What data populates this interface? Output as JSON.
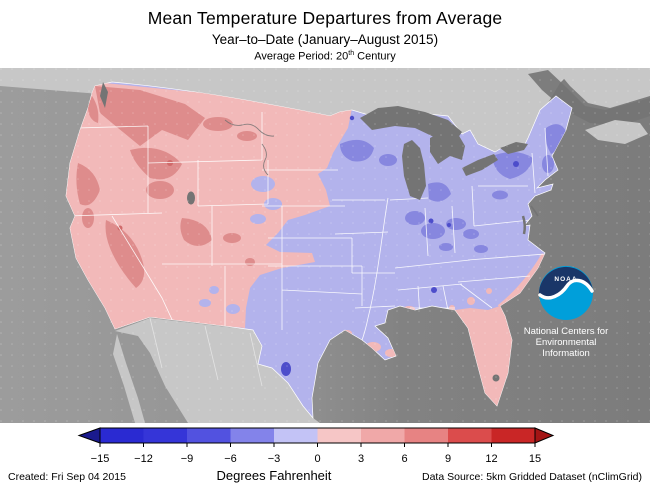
{
  "header": {
    "title": "Mean Temperature Departures from Average",
    "subtitle": "Year–to–Date (January–August 2015)",
    "period": {
      "prefix": "Average Period: 20",
      "sup": "th",
      "suffix": " Century"
    }
  },
  "noaa": {
    "acronym": "NOAA",
    "org_line1": "National Centers for",
    "org_line2": "Environmental",
    "org_line3": "Information"
  },
  "map": {
    "colors": {
      "ocean_left": "#9C9C9C",
      "ocean_right": "#7C7C7C",
      "foreign_land": "#C7C7C7",
      "lakes": "#747474",
      "us_lavender": "#B3B3EC",
      "purple_patch": "#8787DF",
      "deep_purple": "#4D4DCB",
      "us_pink": "#F2B9B9",
      "red_patch": "#DE8C8C",
      "deep_red": "#D06A6A",
      "state_line": "#FFFFFF",
      "noaa_navy": "#1A3668",
      "noaa_cyan": "#009FDA"
    }
  },
  "colorbar": {
    "tick_labels": [
      "−15",
      "−12",
      "−9",
      "−6",
      "−3",
      "0",
      "3",
      "6",
      "9",
      "12",
      "15"
    ],
    "segment_colors": [
      "#2A2AD2",
      "#3535D8",
      "#5252E0",
      "#8383EA",
      "#C3C3F6",
      "#F6C6C6",
      "#F0A8A8",
      "#E78383",
      "#DB4C4C",
      "#C92626"
    ],
    "left_arrow_color": "#1A1A8E",
    "right_arrow_color": "#A31515",
    "unit_label": "Degrees Fahrenheit"
  },
  "footer": {
    "created": "Created: Fri Sep 04 2015",
    "source": "Data Source: 5km Gridded Dataset (nClimGrid)"
  },
  "chart_data": {
    "type": "heatmap",
    "title": "Mean Temperature Departures from Average",
    "subtitle": "Year–to–Date (January–August 2015), Average Period: 20th Century",
    "units": "Degrees Fahrenheit",
    "scale_ticks": [
      -15,
      -12,
      -9,
      -6,
      -3,
      0,
      3,
      6,
      9,
      12,
      15
    ],
    "scale_range": [
      -15,
      15
    ],
    "legend_position": "bottom",
    "regions": [
      {
        "region": "Pacific Northwest / Northern Rockies",
        "departure": "+3 to +6"
      },
      {
        "region": "West (CA, NV, UT, AZ, MT, CO, NM, Dakotas, NW Minnesota)",
        "departure": "0 to +3"
      },
      {
        "region": "Midwest / Great Lakes / Northeast patches",
        "departure": "-3 to -6"
      },
      {
        "region": "Central and Eastern US (Plains, South, Mid-Atlantic)",
        "departure": "0 to -3"
      },
      {
        "region": "Florida peninsula / Gulf and SE coast",
        "departure": "0 to +3"
      }
    ]
  }
}
